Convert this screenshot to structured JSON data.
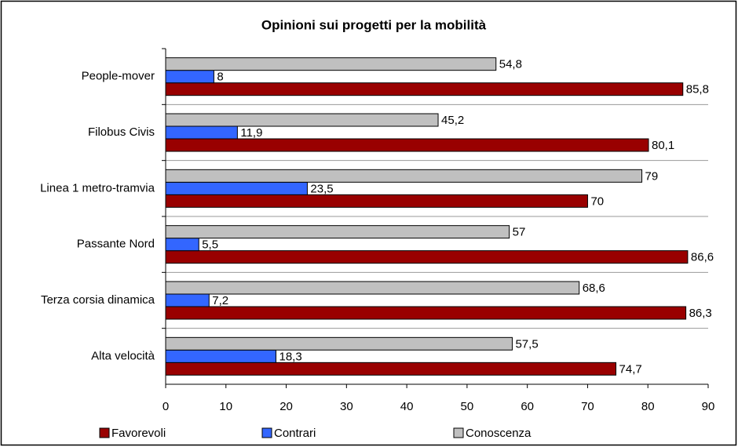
{
  "chart_data": {
    "type": "hbar",
    "title": "Opinioni sui progetti per la mobilità",
    "categories": [
      "People-mover",
      "Filobus Civis",
      "Linea 1 metro-tramvia",
      "Passante Nord",
      "Terza corsia dinamica",
      "Alta velocità"
    ],
    "series": [
      {
        "name": "Favorevoli",
        "color": "#990000",
        "values": [
          85.8,
          80.1,
          70,
          86.6,
          86.3,
          74.7
        ],
        "value_labels": [
          "85,8",
          "80,1",
          "70",
          "86,6",
          "86,3",
          "74,7"
        ]
      },
      {
        "name": "Contrari",
        "color": "#3366ff",
        "values": [
          8,
          11.9,
          23.5,
          5.5,
          7.2,
          18.3
        ],
        "value_labels": [
          "8",
          "11,9",
          "23,5",
          "5,5",
          "7,2",
          "18,3"
        ]
      },
      {
        "name": "Conoscenza",
        "color": "#c0c0c0",
        "values": [
          54.8,
          45.2,
          79,
          57,
          68.6,
          57.5
        ],
        "value_labels": [
          "54,8",
          "45,2",
          "79",
          "57",
          "68,6",
          "57,5"
        ]
      }
    ],
    "xlim": [
      0,
      90
    ],
    "xticks": [
      0,
      10,
      20,
      30,
      40,
      50,
      60,
      70,
      80,
      90
    ],
    "legend": "bottom"
  }
}
